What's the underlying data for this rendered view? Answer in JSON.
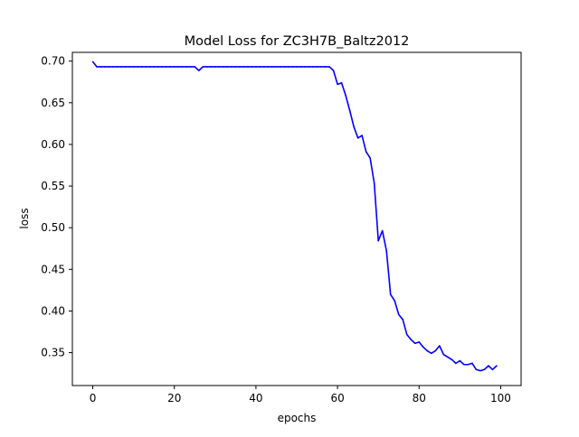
{
  "chart_data": {
    "type": "line",
    "title": "Model Loss for ZC3H7B_Baltz2012",
    "xlabel": "epochs",
    "ylabel": "loss",
    "xlim": [
      -5,
      105
    ],
    "ylim": [
      0.3105,
      0.7105
    ],
    "x_ticks": [
      0,
      20,
      40,
      60,
      80,
      100
    ],
    "y_ticks": [
      0.35,
      0.4,
      0.45,
      0.5,
      0.55,
      0.6,
      0.65,
      0.7
    ],
    "grid": false,
    "legend": "none",
    "line_color": "#0000ff",
    "series": [
      {
        "x": [
          0,
          1,
          2,
          3,
          4,
          5,
          6,
          7,
          8,
          9,
          10,
          11,
          12,
          13,
          14,
          15,
          16,
          17,
          18,
          19,
          20,
          21,
          22,
          23,
          24,
          25,
          26,
          27,
          28,
          29,
          30,
          31,
          32,
          33,
          34,
          35,
          36,
          37,
          38,
          39,
          40,
          41,
          42,
          43,
          44,
          45,
          46,
          47,
          48,
          49,
          50,
          51,
          52,
          53,
          54,
          55,
          56,
          57,
          58,
          59,
          60,
          61,
          62,
          63,
          64,
          65,
          66,
          67,
          68,
          69,
          70,
          71,
          72,
          73,
          74,
          75,
          76,
          77,
          78,
          79,
          80,
          81,
          82,
          83,
          84,
          85,
          86,
          87,
          88,
          89,
          90,
          91,
          92,
          93,
          94,
          95,
          96,
          97,
          98,
          99
        ],
        "values": [
          0.6992,
          0.6932,
          0.6932,
          0.6932,
          0.6932,
          0.6932,
          0.6932,
          0.6932,
          0.6932,
          0.6932,
          0.6932,
          0.6932,
          0.6932,
          0.6932,
          0.6932,
          0.6932,
          0.6932,
          0.6932,
          0.6932,
          0.6932,
          0.6932,
          0.6932,
          0.6932,
          0.6932,
          0.6932,
          0.6932,
          0.6887,
          0.6932,
          0.6932,
          0.6932,
          0.6932,
          0.6932,
          0.6932,
          0.6932,
          0.6932,
          0.6932,
          0.6932,
          0.6932,
          0.6932,
          0.6932,
          0.6932,
          0.6932,
          0.6932,
          0.6932,
          0.6932,
          0.6932,
          0.6932,
          0.6932,
          0.6932,
          0.6932,
          0.6932,
          0.6932,
          0.6932,
          0.6932,
          0.6932,
          0.6932,
          0.6932,
          0.6932,
          0.6932,
          0.6887,
          0.6722,
          0.6738,
          0.6588,
          0.6407,
          0.6212,
          0.6077,
          0.6107,
          0.5912,
          0.5836,
          0.5536,
          0.4843,
          0.4963,
          0.4723,
          0.4198,
          0.4123,
          0.3957,
          0.3897,
          0.3717,
          0.3657,
          0.3612,
          0.3627,
          0.3567,
          0.3522,
          0.3492,
          0.3522,
          0.3582,
          0.3477,
          0.3447,
          0.3417,
          0.3372,
          0.3402,
          0.3357,
          0.3357,
          0.3372,
          0.3297,
          0.3282,
          0.3297,
          0.3342,
          0.3297,
          0.3342
        ]
      }
    ]
  }
}
